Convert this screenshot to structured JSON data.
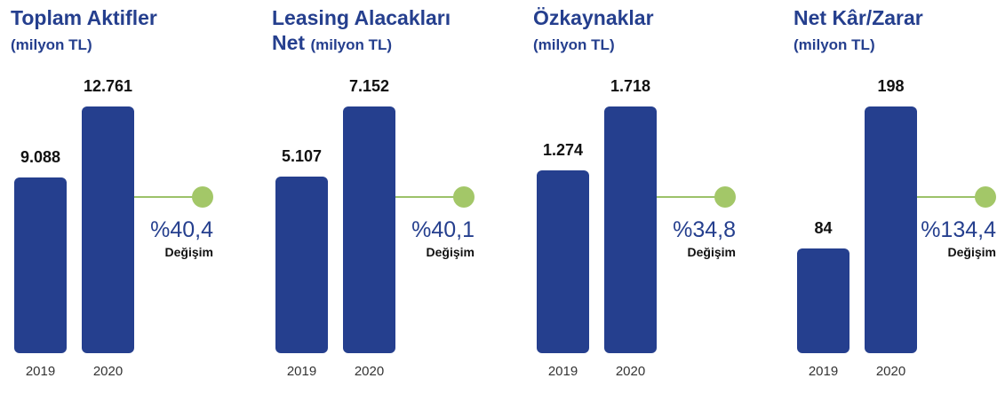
{
  "colors": {
    "bar": "#253f8e",
    "accent": "#a3c768",
    "title": "#253f8e"
  },
  "chart_data": [
    {
      "type": "bar",
      "title": "Toplam Aktifler",
      "title_line2": "",
      "subtitle": "(milyon TL)",
      "categories": [
        "2019",
        "2020"
      ],
      "values": [
        9088,
        12761
      ],
      "value_labels": [
        "9.088",
        "12.761"
      ],
      "change": "%40,4",
      "change_label": "Değişim"
    },
    {
      "type": "bar",
      "title": "Leasing Alacakları",
      "title_line2": "Net",
      "subtitle": "(milyon TL)",
      "categories": [
        "2019",
        "2020"
      ],
      "values": [
        5107,
        7152
      ],
      "value_labels": [
        "5.107",
        "7.152"
      ],
      "change": "%40,1",
      "change_label": "Değişim"
    },
    {
      "type": "bar",
      "title": "Özkaynaklar",
      "title_line2": "",
      "subtitle": "(milyon TL)",
      "categories": [
        "2019",
        "2020"
      ],
      "values": [
        1274,
        1718
      ],
      "value_labels": [
        "1.274",
        "1.718"
      ],
      "change": "%34,8",
      "change_label": "Değişim"
    },
    {
      "type": "bar",
      "title": "Net Kâr/Zarar",
      "title_line2": "",
      "subtitle": "(milyon TL)",
      "categories": [
        "2019",
        "2020"
      ],
      "values": [
        84,
        198
      ],
      "value_labels": [
        "84",
        "198"
      ],
      "change": "%134,4",
      "change_label": "Değişim"
    }
  ]
}
